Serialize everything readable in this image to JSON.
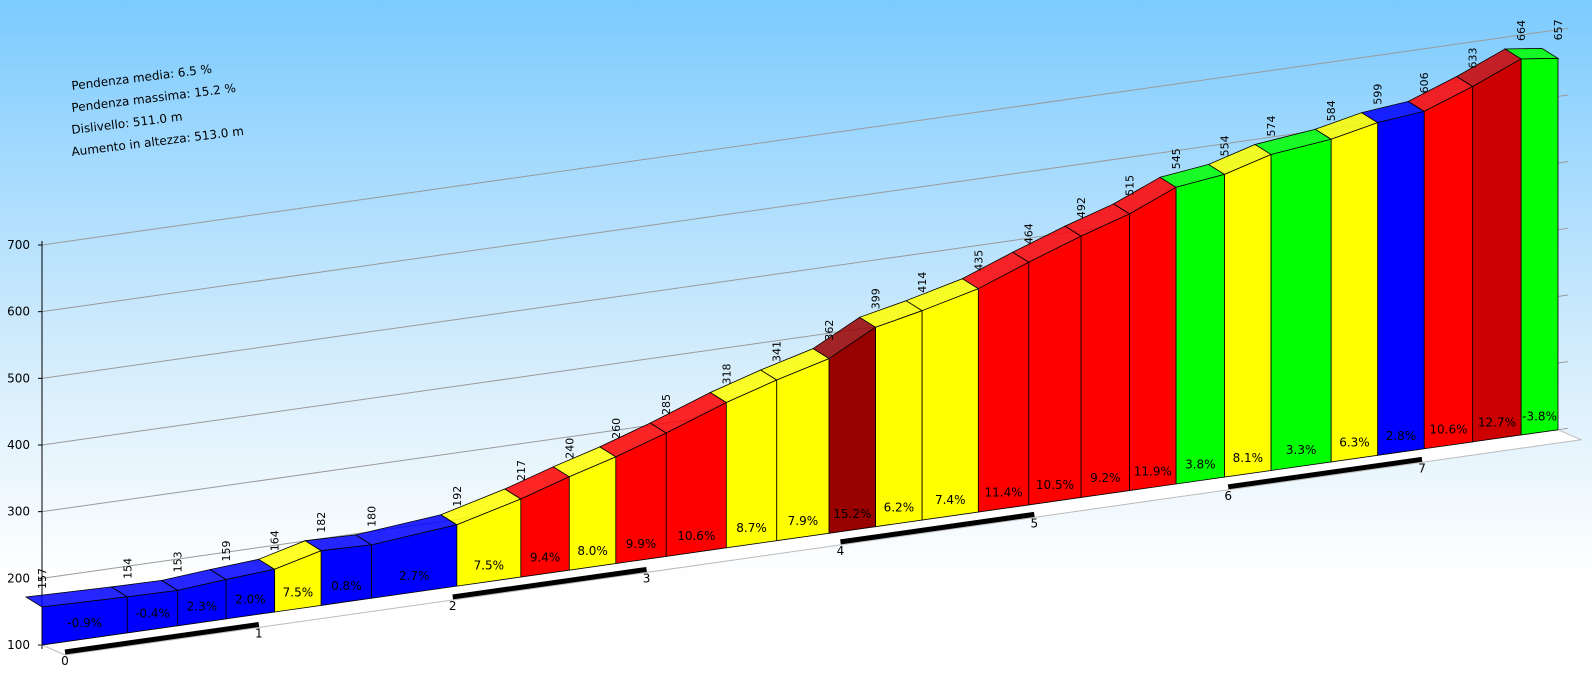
{
  "chart_data": {
    "type": "elevation-profile",
    "annotations": [
      "Pendenza media: 6.5 %",
      "Pendenza massima: 15.2 %",
      "Dislivello: 511.0 m",
      "Aumento in altezza: 513.0 m"
    ],
    "x": [
      0,
      0.44,
      0.7,
      0.95,
      1.2,
      1.44,
      1.7,
      2.14,
      2.47,
      2.72,
      2.96,
      3.22,
      3.53,
      3.79,
      4.06,
      4.3,
      4.54,
      4.83,
      5.09,
      5.36,
      5.61,
      5.85,
      6.1,
      6.34,
      6.65,
      6.89,
      7.13,
      7.38,
      7.63,
      7.82
    ],
    "values": [
      157,
      154,
      153,
      159,
      164,
      182,
      180,
      192,
      217,
      240,
      260,
      285,
      318,
      341,
      362,
      399,
      414,
      435,
      464,
      492,
      515,
      545,
      554,
      574,
      584,
      599,
      606,
      633,
      664,
      657
    ],
    "slopes": [
      -0.9,
      -0.4,
      2.3,
      2.0,
      7.5,
      0.8,
      2.7,
      7.5,
      9.4,
      8.0,
      9.9,
      10.6,
      8.7,
      7.9,
      15.2,
      6.2,
      7.4,
      11.4,
      10.5,
      9.2,
      11.9,
      3.8,
      8.1,
      3.3,
      6.3,
      2.8,
      10.6,
      12.7,
      -3.8
    ],
    "slope_labels": [
      "-0.9%",
      "-0.4%",
      "2.3%",
      "2.0%",
      "7.5%",
      "0.8%",
      "2.7%",
      "7.5%",
      "9.4%",
      "8.0%",
      "9.9%",
      "10.6%",
      "8.7%",
      "7.9%",
      "15.2%",
      "6.2%",
      "7.4%",
      "11.4%",
      "10.5%",
      "9.2%",
      "11.9%",
      "3.8%",
      "8.1%",
      "3.3%",
      "6.3%",
      "2.8%",
      "10.6%",
      "12.7%",
      "-3.8%"
    ],
    "colors": [
      "#0000ff",
      "#0000ff",
      "#0000ff",
      "#0000ff",
      "#ffff00",
      "#0000ff",
      "#0000ff",
      "#ffff00",
      "#ff0000",
      "#ffff00",
      "#ff0000",
      "#ff0000",
      "#ffff00",
      "#ffff00",
      "#990000",
      "#ffff00",
      "#ffff00",
      "#ff0000",
      "#ff0000",
      "#ff0000",
      "#ff0000",
      "#00ff00",
      "#ffff00",
      "#00ff00",
      "#ffff00",
      "#0000ff",
      "#ff0000",
      "#cc0000",
      "#00ff00"
    ],
    "xlim": [
      0,
      7.82
    ],
    "xticks": [
      0,
      1,
      2,
      3,
      4,
      5,
      6,
      7
    ],
    "ylim": [
      100,
      700
    ],
    "yticks": [
      100,
      200,
      300,
      400,
      500,
      600,
      700
    ],
    "grid": true
  }
}
